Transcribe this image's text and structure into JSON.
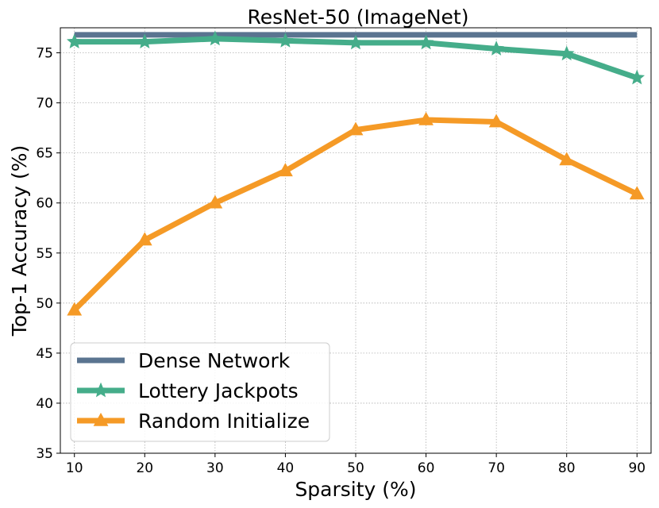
{
  "chart_data": {
    "type": "line",
    "title": "ResNet-50 (ImageNet)",
    "xlabel": "Sparsity (%)",
    "ylabel": "Top-1 Accuracy (%)",
    "x": [
      10,
      20,
      30,
      40,
      50,
      60,
      70,
      80,
      90
    ],
    "xlim": [
      8,
      92
    ],
    "ylim": [
      35,
      77.5
    ],
    "xticks": [
      10,
      20,
      30,
      40,
      50,
      60,
      70,
      80,
      90
    ],
    "yticks": [
      35,
      40,
      45,
      50,
      55,
      60,
      65,
      70,
      75
    ],
    "grid": true,
    "legend_position": "bottom-left",
    "series": [
      {
        "name": "Dense Network",
        "color": "#5a7490",
        "marker": "none",
        "values": [
          76.8,
          76.8,
          76.8,
          76.8,
          76.8,
          76.8,
          76.8,
          76.8,
          76.8
        ]
      },
      {
        "name": "Lottery Jackpots",
        "color": "#45ad8a",
        "marker": "star",
        "values": [
          76.1,
          76.1,
          76.4,
          76.2,
          76.0,
          76.0,
          75.4,
          74.9,
          72.5
        ]
      },
      {
        "name": "Random Initialize",
        "color": "#f59a26",
        "marker": "triangle",
        "values": [
          49.3,
          56.3,
          60.0,
          63.2,
          67.3,
          68.3,
          68.1,
          64.3,
          60.9
        ]
      }
    ]
  }
}
